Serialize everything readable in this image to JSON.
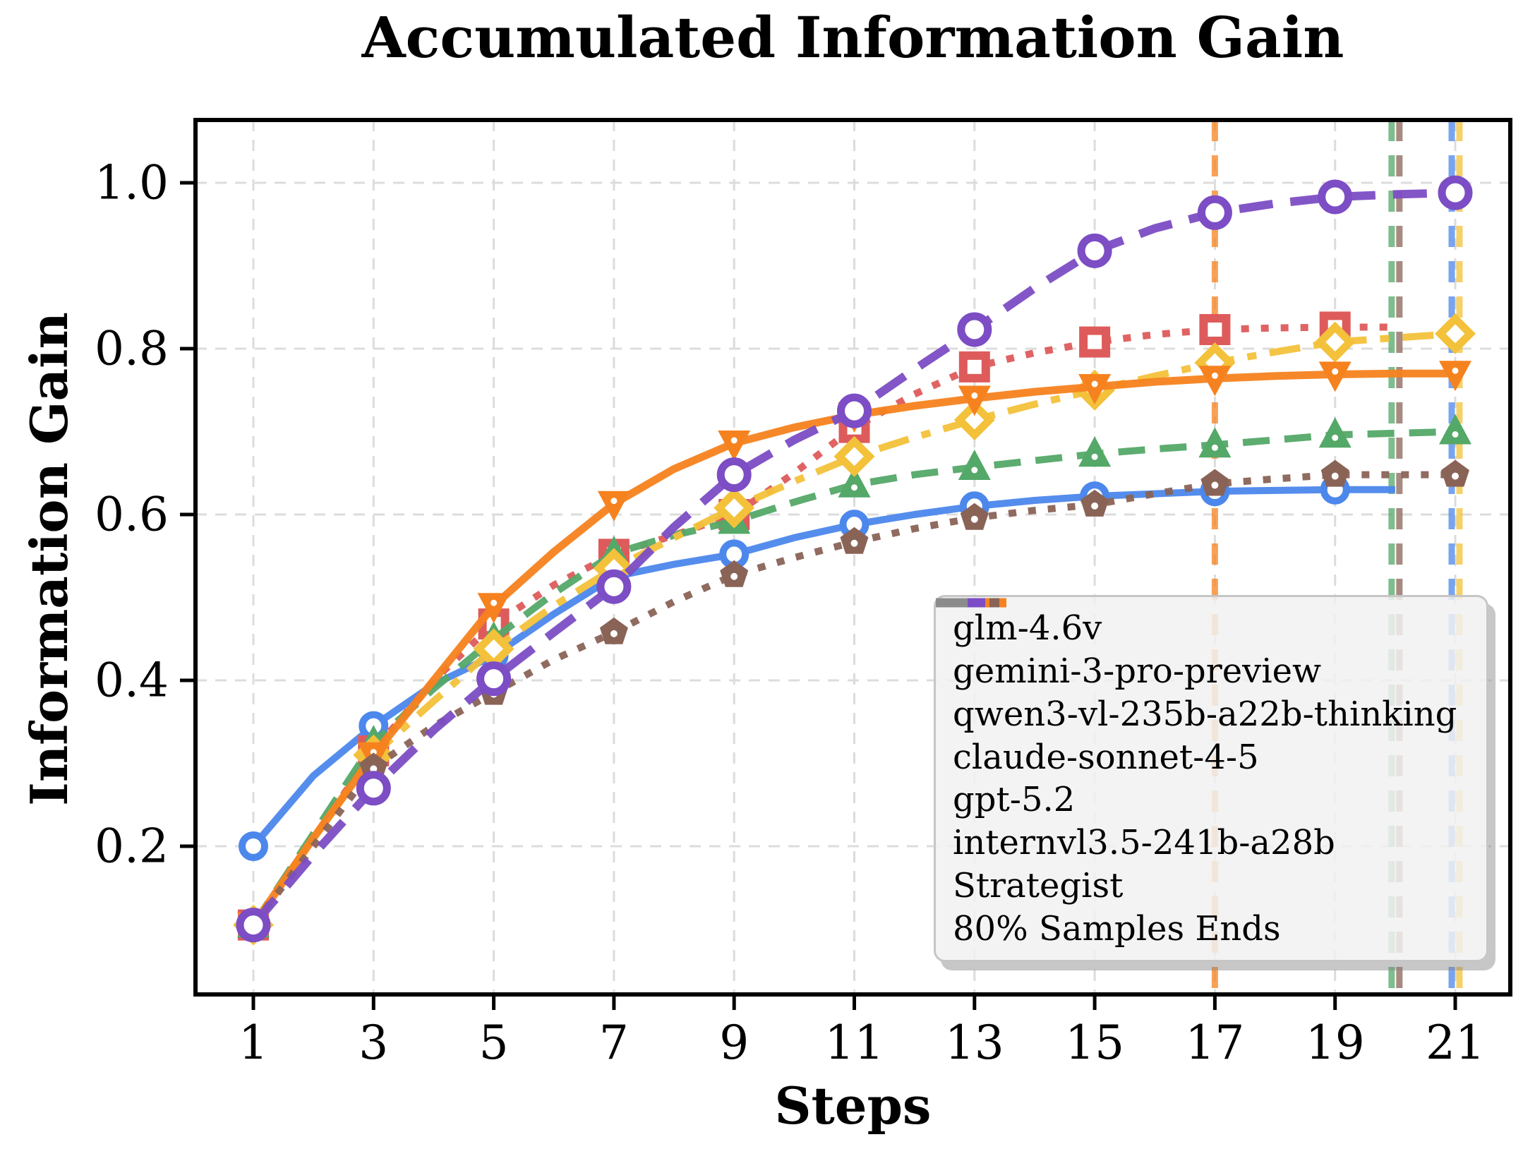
{
  "title": "Accumulated Information Gain",
  "x_axis": {
    "label": "Steps",
    "ticks": [
      1,
      3,
      5,
      7,
      9,
      11,
      13,
      15,
      17,
      19,
      21
    ]
  },
  "y_axis": {
    "label": "Information Gain",
    "ticks": [
      0.2,
      0.4,
      0.6,
      0.8,
      1.0
    ],
    "tick_labels": [
      "0.2",
      "0.4",
      "0.6",
      "0.8",
      "1.0"
    ]
  },
  "colors": {
    "grid": "#dcdcdc",
    "spine": "#000000",
    "legend_bg": "#f1f1f1",
    "blue": "#4c87ec",
    "red": "#de5b5b",
    "green": "#54a868",
    "yellow": "#f3c13a",
    "orange": "#f6821f",
    "brown": "#8a6357",
    "purple": "#7c4dc4",
    "gray": "#8c8c8c"
  },
  "legend": {
    "entries": [
      {
        "label": "glm-4.6v",
        "color": "#4c87ec",
        "pattern": "solid"
      },
      {
        "label": "gemini-3-pro-preview",
        "color": "#de5b5b",
        "pattern": "dotted"
      },
      {
        "label": "qwen3-vl-235b-a22b-thinking",
        "color": "#54a868",
        "pattern": "dashed"
      },
      {
        "label": "claude-sonnet-4-5",
        "color": "#f3c13a",
        "pattern": "dashdot"
      },
      {
        "label": "gpt-5.2",
        "color": "#f6821f",
        "pattern": "solid"
      },
      {
        "label": "internvl3.5-241b-a28b",
        "color": "#8a6357",
        "pattern": "dotted"
      },
      {
        "label": "Strategist",
        "color": "#7c4dc4",
        "pattern": "longdash"
      },
      {
        "label": "80% Samples Ends",
        "color": "#8c8c8c",
        "pattern": "graydash"
      }
    ]
  },
  "chart_data": {
    "type": "line",
    "title": "Accumulated Information Gain",
    "xlabel": "Steps",
    "ylabel": "Information Gain",
    "xticks": [
      1,
      3,
      5,
      7,
      9,
      11,
      13,
      15,
      17,
      19,
      21
    ],
    "yticks": [
      0.2,
      0.4,
      0.6,
      0.8,
      1.0
    ],
    "xlim": [
      0.05,
      21.95
    ],
    "ylim": [
      0.02,
      1.08
    ],
    "grid": true,
    "legend_position": "lower right",
    "marker_steps": "odd",
    "series": [
      {
        "name": "glm-4.6v",
        "color": "#4c87ec",
        "linestyle": "solid",
        "lw": 10,
        "marker": "circle",
        "x": [
          1,
          2,
          3,
          4,
          5,
          6,
          7,
          8,
          9,
          10,
          11,
          12,
          13,
          14,
          15,
          16,
          17,
          18,
          19,
          20
        ],
        "y": [
          0.2,
          0.285,
          0.345,
          0.395,
          0.43,
          0.48,
          0.525,
          0.54,
          0.552,
          0.572,
          0.588,
          0.6,
          0.61,
          0.617,
          0.622,
          0.625,
          0.628,
          0.629,
          0.63,
          0.63
        ]
      },
      {
        "name": "gemini-3-pro-preview",
        "color": "#de5b5b",
        "linestyle": "dotted",
        "lw": 10,
        "marker": "square",
        "x": [
          1,
          2,
          3,
          4,
          5,
          6,
          7,
          8,
          9,
          10,
          11,
          12,
          13,
          14,
          15,
          16,
          17,
          18,
          19,
          20
        ],
        "y": [
          0.105,
          0.21,
          0.315,
          0.4,
          0.468,
          0.515,
          0.552,
          0.575,
          0.6,
          0.65,
          0.705,
          0.745,
          0.778,
          0.795,
          0.808,
          0.817,
          0.823,
          0.825,
          0.826,
          0.826
        ]
      },
      {
        "name": "qwen3-vl-235b-a22b-thinking",
        "color": "#54a868",
        "linestyle": "dashed",
        "lw": 10,
        "marker": "triangle-up",
        "x": [
          1,
          2,
          3,
          4,
          5,
          6,
          7,
          8,
          9,
          10,
          11,
          12,
          13,
          14,
          15,
          16,
          17,
          18,
          19,
          20,
          21
        ],
        "y": [
          0.105,
          0.215,
          0.325,
          0.39,
          0.45,
          0.505,
          0.553,
          0.575,
          0.592,
          0.615,
          0.636,
          0.648,
          0.657,
          0.665,
          0.673,
          0.679,
          0.684,
          0.69,
          0.696,
          0.698,
          0.7
        ]
      },
      {
        "name": "claude-sonnet-4-5",
        "color": "#f3c13a",
        "linestyle": "dashdot",
        "lw": 10,
        "marker": "diamond",
        "x": [
          1,
          2,
          3,
          4,
          5,
          6,
          7,
          8,
          9,
          10,
          11,
          12,
          13,
          14,
          15,
          16,
          17,
          18,
          19,
          20,
          21
        ],
        "y": [
          0.105,
          0.21,
          0.31,
          0.375,
          0.438,
          0.49,
          0.535,
          0.572,
          0.608,
          0.64,
          0.67,
          0.693,
          0.714,
          0.733,
          0.75,
          0.767,
          0.783,
          0.796,
          0.808,
          0.813,
          0.818
        ]
      },
      {
        "name": "gpt-5.2",
        "color": "#f6821f",
        "linestyle": "solid",
        "lw": 11,
        "marker": "triangle-down",
        "x": [
          1,
          2,
          3,
          4,
          5,
          6,
          7,
          8,
          9,
          10,
          11,
          12,
          13,
          14,
          15,
          16,
          17,
          18,
          19,
          20,
          21
        ],
        "y": [
          0.105,
          0.21,
          0.31,
          0.4,
          0.49,
          0.555,
          0.613,
          0.655,
          0.686,
          0.705,
          0.72,
          0.731,
          0.74,
          0.748,
          0.754,
          0.76,
          0.764,
          0.767,
          0.769,
          0.77,
          0.77
        ]
      },
      {
        "name": "internvl3.5-241b-a28b",
        "color": "#8a6357",
        "linestyle": "dotted",
        "lw": 10,
        "marker": "pentagon",
        "x": [
          1,
          2,
          3,
          4,
          5,
          6,
          7,
          8,
          9,
          10,
          11,
          12,
          13,
          14,
          15,
          16,
          17,
          18,
          19,
          20,
          21
        ],
        "y": [
          0.105,
          0.2,
          0.295,
          0.345,
          0.385,
          0.425,
          0.458,
          0.495,
          0.527,
          0.548,
          0.567,
          0.583,
          0.596,
          0.605,
          0.612,
          0.625,
          0.637,
          0.643,
          0.648,
          0.648,
          0.648
        ]
      },
      {
        "name": "Strategist",
        "color": "#7c4dc4",
        "linestyle": "longdash",
        "lw": 12,
        "marker": "ring",
        "x": [
          1,
          2,
          3,
          4,
          5,
          6,
          7,
          8,
          9,
          10,
          11,
          12,
          13,
          14,
          15,
          16,
          17,
          18,
          19,
          20,
          21
        ],
        "y": [
          0.105,
          0.19,
          0.27,
          0.34,
          0.402,
          0.458,
          0.513,
          0.585,
          0.648,
          0.69,
          0.725,
          0.775,
          0.823,
          0.873,
          0.918,
          0.945,
          0.964,
          0.975,
          0.983,
          0.986,
          0.988
        ]
      }
    ],
    "end_lines": [
      {
        "model": "gpt-5.2",
        "step": 17,
        "color": "#f6821f"
      },
      {
        "model": "qwen3-vl-235b-a22b-thinking",
        "step": 20,
        "color": "#54a868"
      },
      {
        "model": "internvl3.5-241b-a28b",
        "step": 20,
        "color": "#8a6357"
      },
      {
        "model": "glm-4.6v",
        "step": 21,
        "color": "#4c87ec"
      },
      {
        "model": "claude-sonnet-4-5",
        "step": 21,
        "color": "#f3c13a"
      }
    ]
  }
}
